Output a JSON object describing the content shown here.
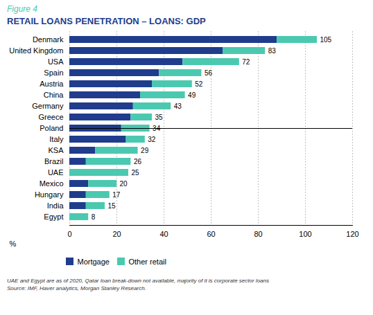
{
  "chart_data": {
    "type": "bar",
    "orientation": "horizontal",
    "stacked": true,
    "subtitle": "Figure 4",
    "title": "RETAIL LOANS PENETRATION – LOANS: GDP",
    "xlabel": "%",
    "categories": [
      "Denmark",
      "United Kingdom",
      "USA",
      "Spain",
      "Austria",
      "China",
      "Germany",
      "Greece",
      "Poland",
      "Italy",
      "KSA",
      "Brazil",
      "UAE",
      "Mexico",
      "Hungary",
      "India",
      "Egypt"
    ],
    "series": [
      {
        "name": "Mortgage",
        "color": "#1f3d8c",
        "values": [
          88,
          65,
          48,
          38,
          35,
          30,
          27,
          26,
          22,
          24,
          11,
          7,
          0,
          8,
          7,
          7,
          0
        ]
      },
      {
        "name": "Other retail",
        "color": "#4bc9b0",
        "values": [
          17,
          18,
          24,
          18,
          17,
          19,
          16,
          9,
          12,
          8,
          18,
          19,
          25,
          12,
          10,
          8,
          8
        ]
      }
    ],
    "totals": [
      105,
      83,
      72,
      56,
      52,
      49,
      43,
      35,
      34,
      32,
      29,
      26,
      25,
      20,
      17,
      15,
      8
    ],
    "xlim": [
      0,
      120
    ],
    "xticks": [
      0,
      20,
      40,
      60,
      80,
      100,
      120
    ],
    "grid": true,
    "legend": "bottom",
    "annotations": [
      "UAE and Egypt are as of 2020, Qatar loan break-down not available, majority of it is corporate sector loans",
      "Source: IMF, Haver analytics, Morgan Stanley Research."
    ]
  }
}
